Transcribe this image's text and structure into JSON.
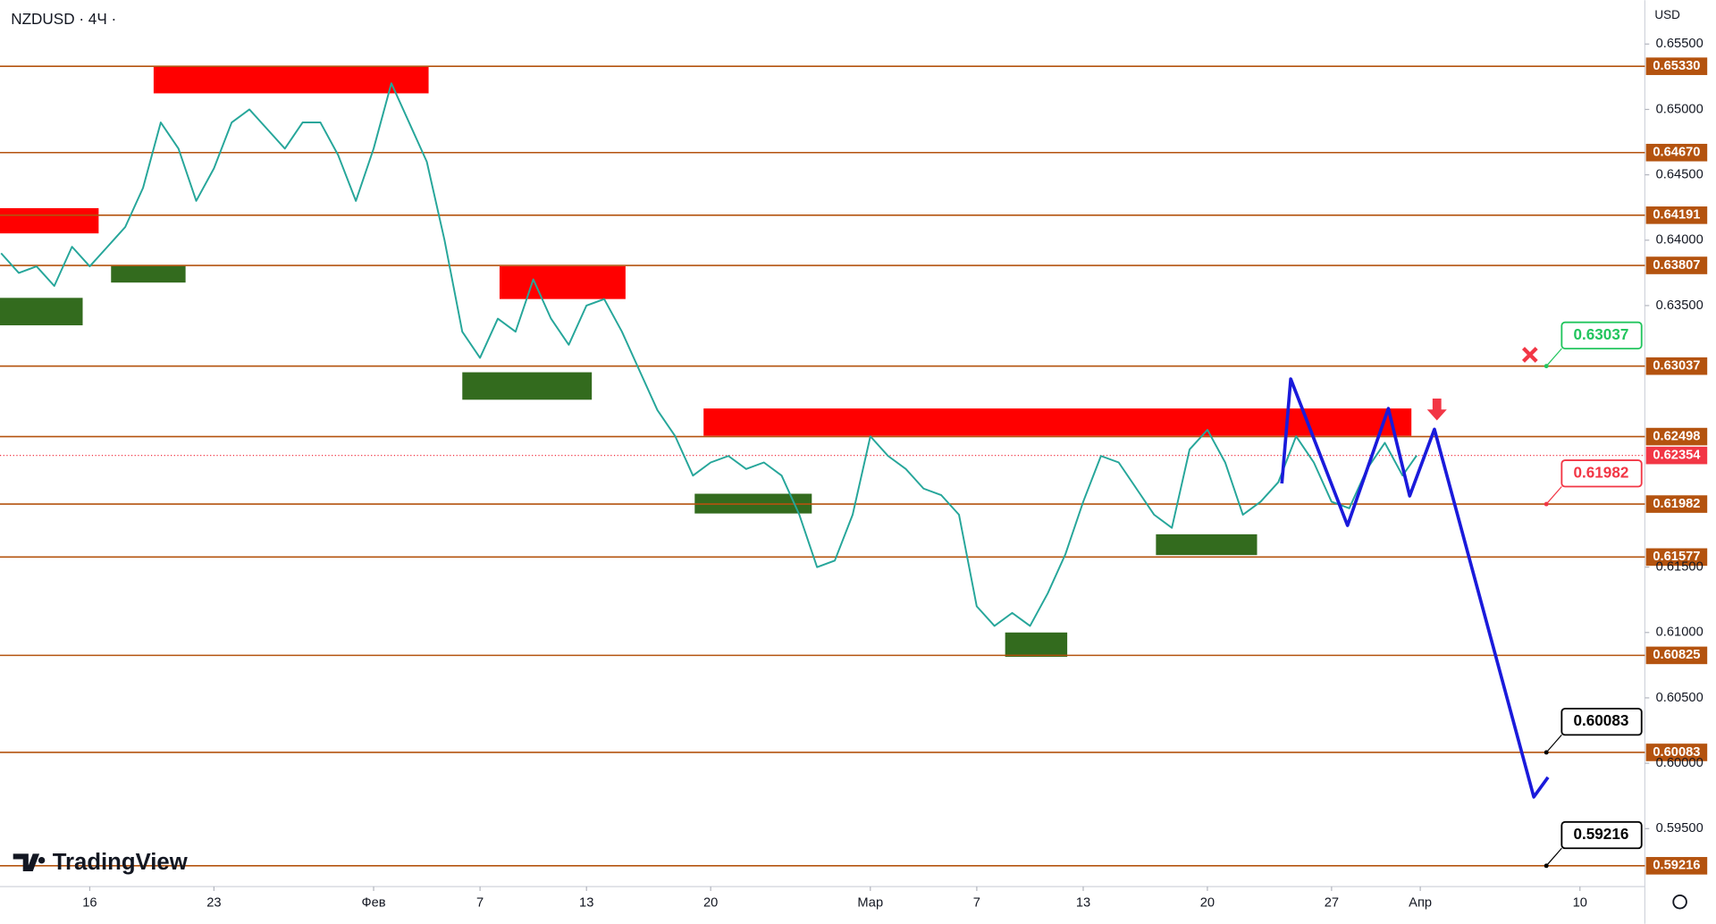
{
  "chart_data": {
    "type": "line",
    "title": "NZDUSD · 4Ч ·",
    "currency": "USD",
    "brand": "TradingView",
    "xlim": [
      -5.06,
      87.66
    ],
    "ylim": [
      0.59057,
      0.65835
    ],
    "xticks": [
      {
        "value": 0,
        "label": "16"
      },
      {
        "value": 7,
        "label": "23"
      },
      {
        "value": 16,
        "label": "Фев"
      },
      {
        "value": 22,
        "label": "7"
      },
      {
        "value": 28,
        "label": "13"
      },
      {
        "value": 35,
        "label": "20"
      },
      {
        "value": 44,
        "label": "Мар"
      },
      {
        "value": 50,
        "label": "7"
      },
      {
        "value": 56,
        "label": "13"
      },
      {
        "value": 63,
        "label": "20"
      },
      {
        "value": 70,
        "label": "27"
      },
      {
        "value": 75,
        "label": "Апр"
      },
      {
        "value": 84,
        "label": "10"
      }
    ],
    "yticks": [
      {
        "value": 0.655,
        "label": "0.65500"
      },
      {
        "value": 0.65,
        "label": "0.65000"
      },
      {
        "value": 0.645,
        "label": "0.64500"
      },
      {
        "value": 0.64,
        "label": "0.64000"
      },
      {
        "value": 0.635,
        "label": "0.63500"
      },
      {
        "value": 0.615,
        "label": "0.61500"
      },
      {
        "value": 0.61,
        "label": "0.61000"
      },
      {
        "value": 0.605,
        "label": "0.60500"
      },
      {
        "value": 0.6,
        "label": "0.60000"
      },
      {
        "value": 0.595,
        "label": "0.59500"
      }
    ],
    "series": [
      {
        "name": "NZDUSD",
        "color": "#26a69a",
        "x": [
          -5,
          -4,
          -3,
          -2,
          -1,
          0,
          1,
          2,
          3,
          4,
          5,
          6,
          7,
          8,
          9,
          10,
          11,
          12,
          13,
          14,
          15,
          16,
          17,
          18,
          19,
          20,
          21,
          22,
          23,
          24,
          25,
          26,
          27,
          28,
          29,
          30,
          31,
          32,
          33,
          34,
          35,
          36,
          37,
          38,
          39,
          40,
          41,
          42,
          43,
          44,
          45,
          46,
          47,
          48,
          49,
          50,
          51,
          52,
          53,
          54,
          55,
          56,
          57,
          58,
          59,
          60,
          61,
          62,
          63,
          64,
          65,
          66,
          67,
          68,
          69,
          70,
          71,
          72,
          73,
          74,
          74.8
        ],
        "values": [
          0.639,
          0.6375,
          0.638,
          0.6365,
          0.6395,
          0.638,
          0.6395,
          0.641,
          0.644,
          0.649,
          0.647,
          0.643,
          0.6455,
          0.649,
          0.65,
          0.6485,
          0.647,
          0.649,
          0.649,
          0.6465,
          0.643,
          0.647,
          0.652,
          0.649,
          0.646,
          0.64,
          0.633,
          0.631,
          0.634,
          0.633,
          0.637,
          0.634,
          0.632,
          0.635,
          0.6355,
          0.633,
          0.63,
          0.627,
          0.625,
          0.622,
          0.623,
          0.6235,
          0.6225,
          0.623,
          0.622,
          0.619,
          0.615,
          0.6155,
          0.619,
          0.625,
          0.6235,
          0.6225,
          0.621,
          0.6205,
          0.619,
          0.612,
          0.6105,
          0.6115,
          0.6105,
          0.613,
          0.616,
          0.62,
          0.6235,
          0.623,
          0.621,
          0.619,
          0.618,
          0.624,
          0.6255,
          0.623,
          0.619,
          0.62,
          0.6215,
          0.625,
          0.623,
          0.62,
          0.6195,
          0.6225,
          0.6245,
          0.622,
          0.62354
        ]
      },
      {
        "name": "Forecast",
        "color": "#1a1adb",
        "x": [
          67.2,
          67.7,
          70.9,
          73.2,
          74.4,
          75.8,
          81.4,
          82.2
        ],
        "values": [
          0.6214,
          0.62939,
          0.61818,
          0.62713,
          0.62044,
          0.62554,
          0.59742,
          0.59893
        ]
      }
    ],
    "levels": [
      {
        "value": 0.6533,
        "label": "0.65330"
      },
      {
        "value": 0.6467,
        "label": "0.64670"
      },
      {
        "value": 0.64191,
        "label": "0.64191"
      },
      {
        "value": 0.63807,
        "label": "0.63807"
      },
      {
        "value": 0.63037,
        "label": "0.63037"
      },
      {
        "value": 0.62498,
        "label": "0.62498"
      },
      {
        "value": 0.61982,
        "label": "0.61982"
      },
      {
        "value": 0.61577,
        "label": "0.61577"
      },
      {
        "value": 0.60825,
        "label": "0.60825"
      },
      {
        "value": 0.60083,
        "label": "0.60083"
      },
      {
        "value": 0.59216,
        "label": "0.59216"
      }
    ],
    "level_color": "#b4530f",
    "last_price": {
      "value": 0.62354,
      "label": "0.62354",
      "color": "#f23645"
    },
    "zones": [
      {
        "x": [
          3.6,
          19.1
        ],
        "y": [
          0.65123,
          0.65333
        ],
        "color": "#ff0000"
      },
      {
        "x": [
          -5.06,
          0.5
        ],
        "y": [
          0.64052,
          0.64245
        ],
        "color": "#ff0000"
      },
      {
        "x": [
          23.1,
          30.2
        ],
        "y": [
          0.6355,
          0.63801
        ],
        "color": "#ff0000"
      },
      {
        "x": [
          34.6,
          74.5
        ],
        "y": [
          0.62504,
          0.62713
        ],
        "color": "#ff0000"
      },
      {
        "x": [
          -5.06,
          -0.4
        ],
        "y": [
          0.63349,
          0.63559
        ],
        "color": "#336b1e"
      },
      {
        "x": [
          1.2,
          5.4
        ],
        "y": [
          0.63676,
          0.6381
        ],
        "color": "#336b1e"
      },
      {
        "x": [
          21.0,
          28.3
        ],
        "y": [
          0.6278,
          0.6299
        ],
        "color": "#336b1e"
      },
      {
        "x": [
          34.1,
          40.7
        ],
        "y": [
          0.6191,
          0.62061
        ],
        "color": "#336b1e"
      },
      {
        "x": [
          60.1,
          65.8
        ],
        "y": [
          0.61592,
          0.61751
        ],
        "color": "#336b1e"
      },
      {
        "x": [
          51.6,
          55.1
        ],
        "y": [
          0.60814,
          0.61
        ],
        "color": "#336b1e"
      }
    ],
    "callouts": [
      {
        "value": 0.63037,
        "label": "0.63037",
        "color": "#22c55e"
      },
      {
        "value": 0.61982,
        "label": "0.61982",
        "color": "#f23645"
      },
      {
        "value": 0.60083,
        "label": "0.60083",
        "color": "#000000"
      },
      {
        "value": 0.59216,
        "label": "0.59216",
        "color": "#000000"
      }
    ]
  }
}
